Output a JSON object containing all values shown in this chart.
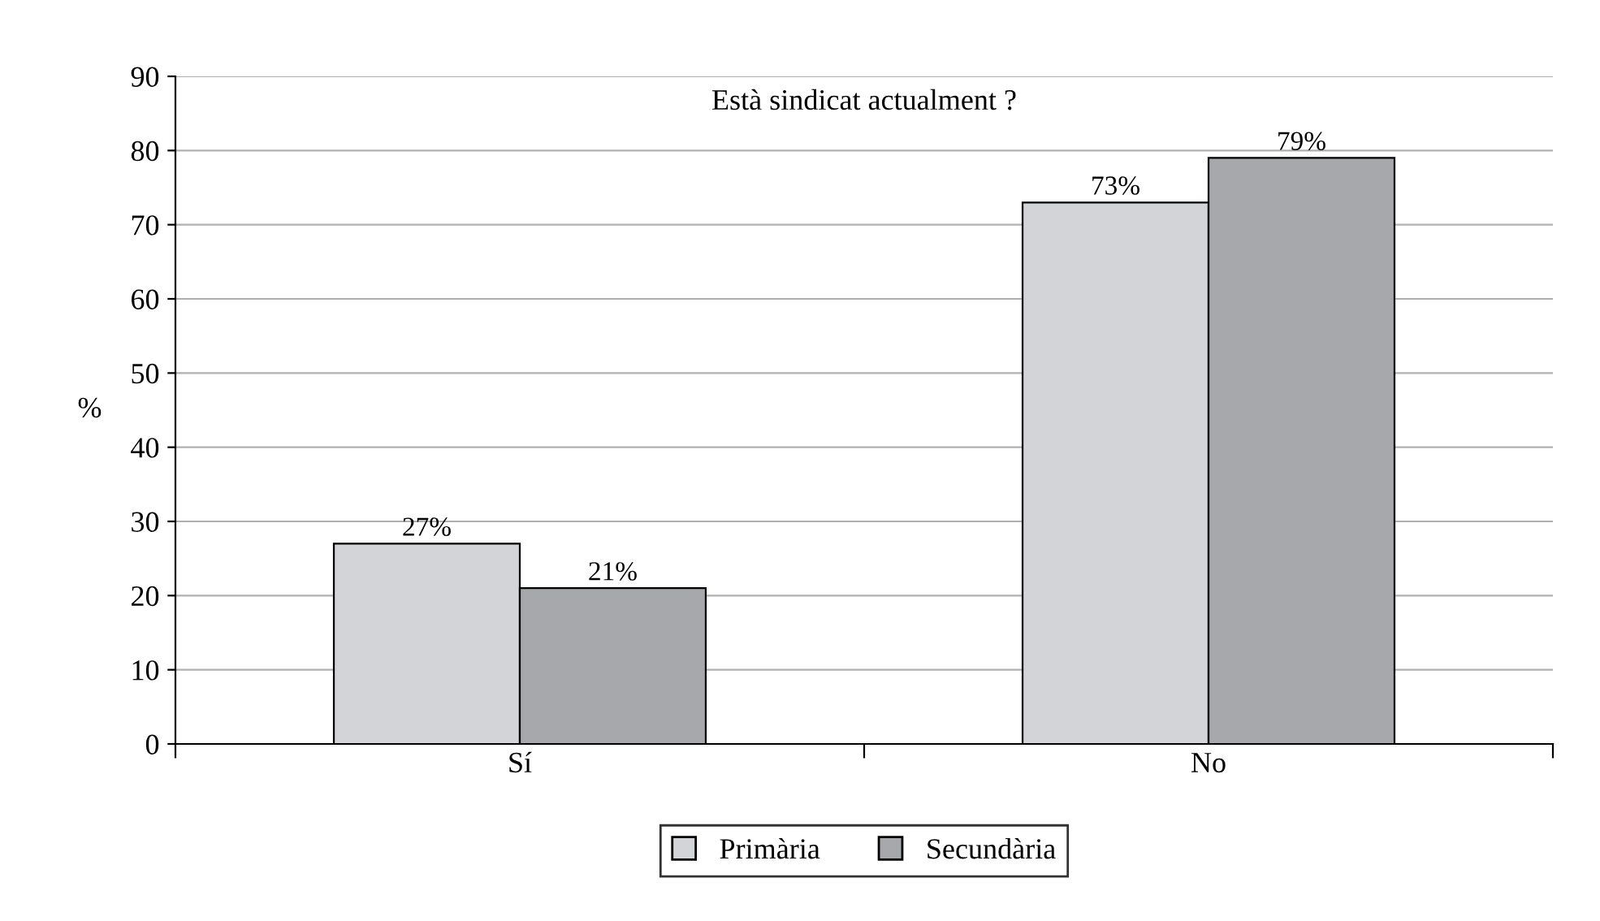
{
  "chart_data": {
    "type": "bar",
    "title": "Està sindicat actualment ?",
    "ylabel": "%",
    "categories": [
      "Sí",
      "No"
    ],
    "series": [
      {
        "name": "Primària",
        "color": "#d3d4d8",
        "values": [
          27,
          73
        ],
        "value_labels": [
          "27%",
          "73%"
        ]
      },
      {
        "name": "Secundària",
        "color": "#a7a8ac",
        "values": [
          21,
          79
        ],
        "value_labels": [
          "21%",
          "79%"
        ]
      }
    ],
    "ylim": [
      0,
      90
    ],
    "yticks": [
      0,
      10,
      20,
      30,
      40,
      50,
      60,
      70,
      80,
      90
    ],
    "grid": "y",
    "legend": "bottom"
  }
}
